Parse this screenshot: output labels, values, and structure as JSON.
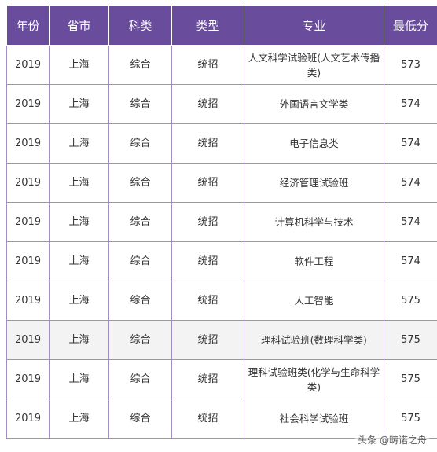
{
  "headers": [
    "年份",
    "省市",
    "科类",
    "类型",
    "专业",
    "最低分"
  ],
  "rows": [
    {
      "year": "2019",
      "province": "上海",
      "subject": "综合",
      "type": "统招",
      "major": "人文科学试验班(人文艺术传播类)",
      "min_score": "573"
    },
    {
      "year": "2019",
      "province": "上海",
      "subject": "综合",
      "type": "统招",
      "major": "外国语言文学类",
      "min_score": "574"
    },
    {
      "year": "2019",
      "province": "上海",
      "subject": "综合",
      "type": "统招",
      "major": "电子信息类",
      "min_score": "574"
    },
    {
      "year": "2019",
      "province": "上海",
      "subject": "综合",
      "type": "统招",
      "major": "经济管理试验班",
      "min_score": "574"
    },
    {
      "year": "2019",
      "province": "上海",
      "subject": "综合",
      "type": "统招",
      "major": "计算机科学与技术",
      "min_score": "574"
    },
    {
      "year": "2019",
      "province": "上海",
      "subject": "综合",
      "type": "统招",
      "major": "软件工程",
      "min_score": "574"
    },
    {
      "year": "2019",
      "province": "上海",
      "subject": "综合",
      "type": "统招",
      "major": "人工智能",
      "min_score": "575"
    },
    {
      "year": "2019",
      "province": "上海",
      "subject": "综合",
      "type": "统招",
      "major": "理科试验班(数理科学类)",
      "min_score": "575"
    },
    {
      "year": "2019",
      "province": "上海",
      "subject": "综合",
      "type": "统招",
      "major": "理科试验班类(化学与生命科学类)",
      "min_score": "575"
    },
    {
      "year": "2019",
      "province": "上海",
      "subject": "综合",
      "type": "统招",
      "major": "社会科学试验班",
      "min_score": "575"
    }
  ],
  "watermark": "头条 @畴诺之舟"
}
